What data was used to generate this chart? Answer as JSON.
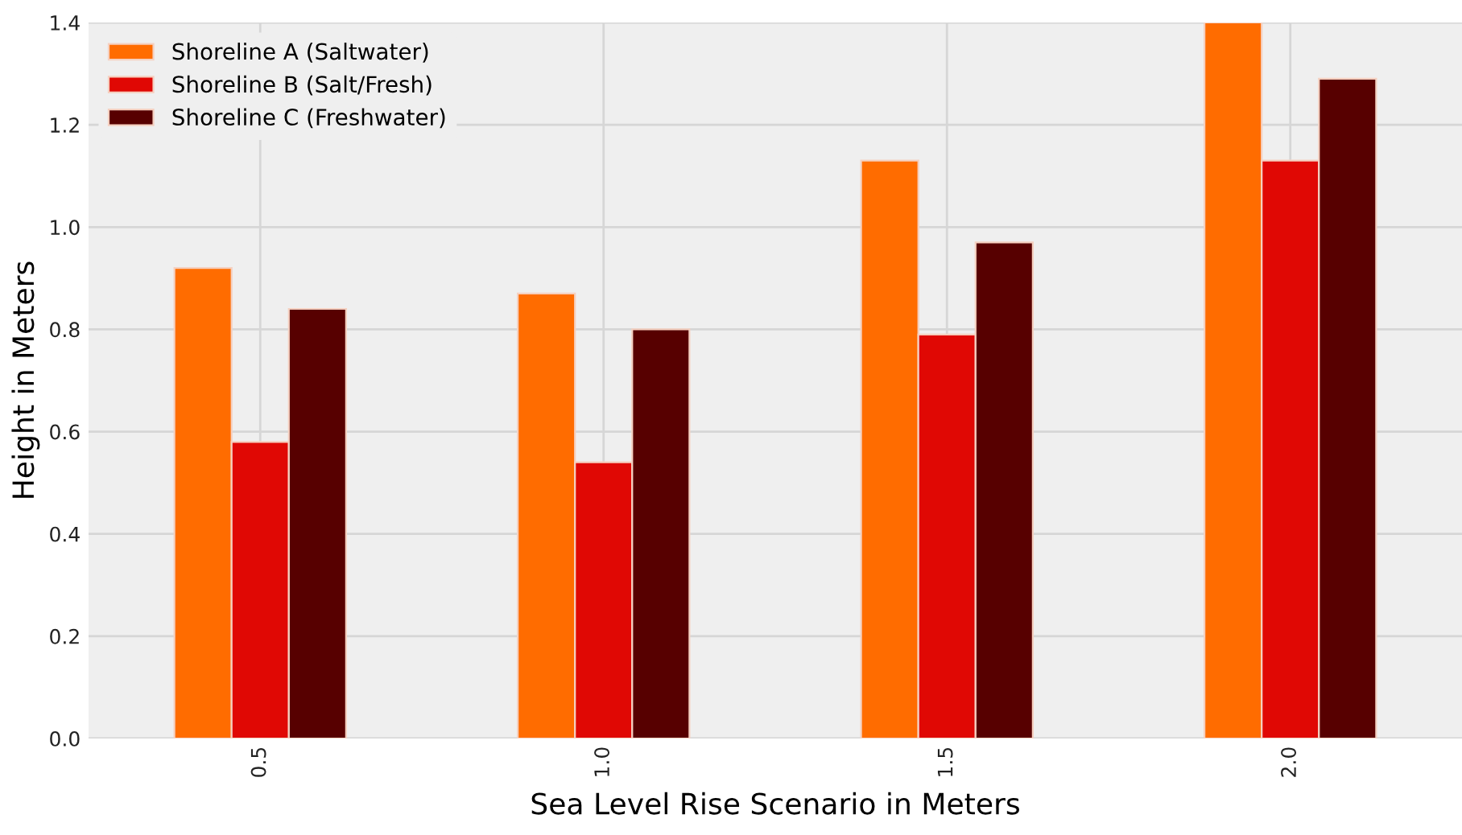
{
  "chart_data": {
    "type": "bar",
    "xlabel": "Sea Level Rise Scenario in Meters",
    "ylabel": "Height in Meters",
    "categories": [
      "0.5",
      "1.0",
      "1.5",
      "2.0"
    ],
    "series": [
      {
        "name": "Shoreline A (Saltwater)",
        "color": "#ff6c00",
        "values": [
          0.92,
          0.87,
          1.13,
          1.4
        ]
      },
      {
        "name": "Shoreline B (Salt/Fresh)",
        "color": "#e00804",
        "values": [
          0.58,
          0.54,
          0.79,
          1.13
        ]
      },
      {
        "name": "Shoreline C (Freshwater)",
        "color": "#570000",
        "values": [
          0.84,
          0.8,
          0.97,
          1.29
        ]
      }
    ],
    "ylim": [
      0,
      1.4
    ],
    "yticks": [
      {
        "value": 0,
        "label": "0.0"
      },
      0.2,
      0.4,
      0.6,
      0.8,
      {
        "value": 1,
        "label": "1.0"
      },
      1.2,
      1.4
    ],
    "grid": true,
    "legend": "top left"
  }
}
